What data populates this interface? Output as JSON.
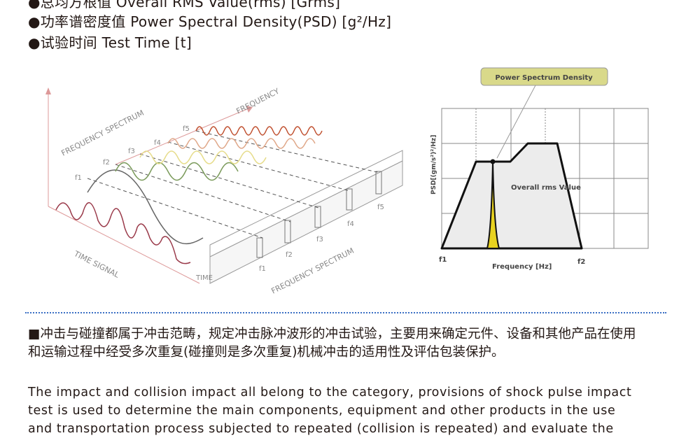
{
  "bullets": [
    "●总均方根值 Overall RMS Value(rms) [Grms]",
    "●功率谱密度值 Power Spectral Density(PSD) [g²/Hz]",
    "●试验时间 Test Time [t]"
  ],
  "left_figure": {
    "frequency_spectrum_top": "FREQUENCY SPECTRUM",
    "frequency": "FREQUENCY",
    "time_signal": "TIME SIGNAL",
    "time": "TIME",
    "frequency_spectrum_bottom": "FREQUENCY SPECTRUM",
    "f_labels": [
      "f1",
      "f2",
      "f3",
      "f4",
      "f5"
    ]
  },
  "right_figure": {
    "callout": "Power Spectrum Density",
    "ylabel": "PSD[(gm/s²)²/Hz]",
    "xlabel": "Frequency [Hz]",
    "area_label": "Overall rms Value",
    "f1": "f1",
    "f2": "f2",
    "colors": {
      "callout_bg": "#d9d98a",
      "spike": "#e8d21f",
      "fill": "#ececec"
    }
  },
  "paragraph_zh": "■冲击与碰撞都属于冲击范畴，规定冲击脉冲波形的冲击试验，主要用来确定元件、设备和其他产品在使用和运输过程中经受多次重复(碰撞则是多次重复)机械冲击的适用性及评估包装保护。",
  "paragraph_en": [
    "The impact and collision impact all belong to the category, provisions of shock pulse impact",
    "test is used to determine the main components, equipment and other products in the use",
    "and transportation process subjected to repeated (collision is repeated) and evaluate the"
  ]
}
